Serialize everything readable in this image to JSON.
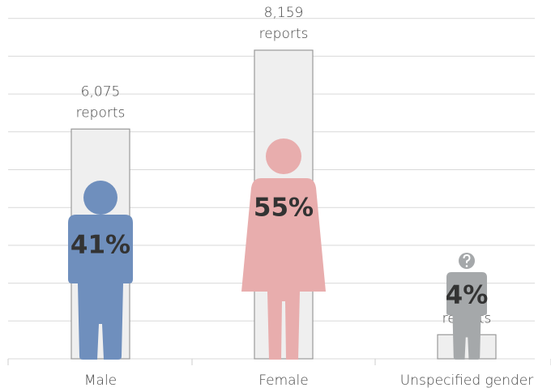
{
  "chart_data": {
    "type": "bar",
    "categories": [
      "Male",
      "Female",
      "Unspecified gender"
    ],
    "values": [
      6075,
      8159,
      637
    ],
    "value_labels": [
      "6,075 reports",
      "8,159 reports",
      "637 reports"
    ],
    "shares": {
      "values": [
        41,
        55,
        4
      ],
      "value_labels": [
        "41%",
        "55%",
        "4%"
      ]
    },
    "colors": [
      "#6f8fbd",
      "#e8adad",
      "#a5a8aa"
    ],
    "bar_color": "#efefef",
    "ylim": [
      0,
      9000
    ],
    "yticks": [
      0,
      1000,
      2000,
      3000,
      4000,
      5000,
      6000,
      7000,
      8000,
      9000
    ],
    "grid": true
  }
}
